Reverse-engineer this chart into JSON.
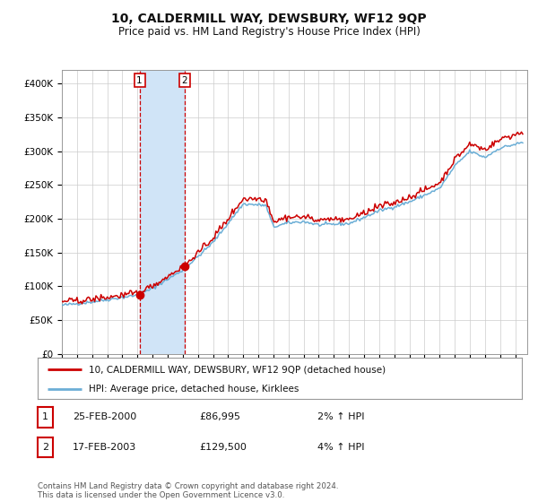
{
  "title": "10, CALDERMILL WAY, DEWSBURY, WF12 9QP",
  "subtitle": "Price paid vs. HM Land Registry's House Price Index (HPI)",
  "title_fontsize": 10,
  "subtitle_fontsize": 8.5,
  "ylabel_ticks": [
    "£0",
    "£50K",
    "£100K",
    "£150K",
    "£200K",
    "£250K",
    "£300K",
    "£350K",
    "£400K"
  ],
  "ytick_values": [
    0,
    50000,
    100000,
    150000,
    200000,
    250000,
    300000,
    350000,
    400000
  ],
  "ylim": [
    0,
    420000
  ],
  "xlim_start": 1995.0,
  "xlim_end": 2025.8,
  "sale1_x": 2000.14,
  "sale1_y": 86995,
  "sale2_x": 2003.12,
  "sale2_y": 129500,
  "sale1_label": "1",
  "sale2_label": "2",
  "shade_color": "#d0e4f7",
  "dashed_line_color": "#cc0000",
  "legend_entry1": "10, CALDERMILL WAY, DEWSBURY, WF12 9QP (detached house)",
  "legend_entry2": "HPI: Average price, detached house, Kirklees",
  "table_row1": [
    "1",
    "25-FEB-2000",
    "£86,995",
    "2% ↑ HPI"
  ],
  "table_row2": [
    "2",
    "17-FEB-2003",
    "£129,500",
    "4% ↑ HPI"
  ],
  "footer": "Contains HM Land Registry data © Crown copyright and database right 2024.\nThis data is licensed under the Open Government Licence v3.0.",
  "hpi_line_color": "#6baed6",
  "price_line_color": "#cc0000",
  "background_color": "#ffffff",
  "grid_color": "#cccccc"
}
